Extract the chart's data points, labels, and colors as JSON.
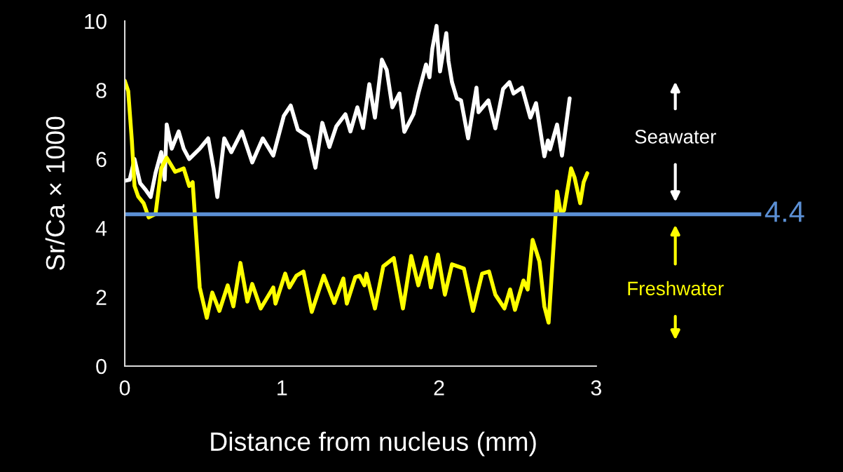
{
  "chart_data": {
    "type": "line",
    "xlabel": "Distance from nucleus (mm)",
    "ylabel": "Sr/Ca × 1000",
    "xlim": [
      0,
      4.05
    ],
    "ylim": [
      0,
      10
    ],
    "xticks": [
      0,
      1,
      2,
      3
    ],
    "yticks": [
      0,
      2,
      4,
      6,
      8,
      10
    ],
    "grid": false,
    "marker": "none",
    "line_style": "solid",
    "series": [
      {
        "color": "#ffffff",
        "x": [
          0.0,
          0.031,
          0.062,
          0.098,
          0.134,
          0.165,
          0.196,
          0.232,
          0.254,
          0.267,
          0.299,
          0.343,
          0.375,
          0.41,
          0.477,
          0.531,
          0.566,
          0.589,
          0.633,
          0.678,
          0.745,
          0.811,
          0.878,
          0.945,
          1.012,
          1.056,
          1.101,
          1.168,
          1.213,
          1.257,
          1.302,
          1.346,
          1.404,
          1.436,
          1.48,
          1.516,
          1.556,
          1.592,
          1.636,
          1.667,
          1.703,
          1.748,
          1.779,
          1.837,
          1.868,
          1.917,
          1.939,
          1.957,
          1.984,
          2.006,
          2.046,
          2.06,
          2.082,
          2.113,
          2.14,
          2.185,
          2.238,
          2.251,
          2.314,
          2.358,
          2.407,
          2.448,
          2.474,
          2.528,
          2.581,
          2.617,
          2.67,
          2.693,
          2.706,
          2.751,
          2.782,
          2.831
        ],
        "values": [
          5.37,
          5.4,
          6.0,
          5.3,
          5.1,
          4.9,
          5.6,
          6.2,
          5.4,
          7.0,
          6.3,
          6.8,
          6.3,
          6.0,
          6.3,
          6.6,
          5.7,
          4.9,
          6.6,
          6.2,
          6.8,
          5.9,
          6.6,
          6.1,
          7.25,
          7.55,
          6.85,
          6.65,
          5.75,
          7.05,
          6.35,
          6.95,
          7.3,
          6.8,
          7.5,
          6.9,
          8.17,
          7.2,
          8.88,
          8.58,
          7.5,
          7.9,
          6.79,
          7.3,
          7.9,
          8.74,
          8.37,
          9.19,
          9.86,
          8.54,
          9.65,
          8.84,
          8.23,
          7.76,
          7.7,
          6.6,
          8.07,
          7.36,
          7.7,
          6.89,
          8.03,
          8.23,
          7.9,
          8.07,
          7.2,
          7.62,
          6.08,
          6.54,
          6.28,
          7.0,
          6.1,
          7.76
        ]
      },
      {
        "color": "#ffff00",
        "x": [
          0.0,
          0.022,
          0.045,
          0.062,
          0.085,
          0.12,
          0.152,
          0.196,
          0.232,
          0.267,
          0.321,
          0.375,
          0.41,
          0.432,
          0.477,
          0.522,
          0.557,
          0.602,
          0.655,
          0.691,
          0.736,
          0.78,
          0.811,
          0.865,
          0.945,
          0.959,
          1.021,
          1.048,
          1.092,
          1.137,
          1.19,
          1.266,
          1.333,
          1.391,
          1.413,
          1.467,
          1.494,
          1.525,
          1.538,
          1.592,
          1.645,
          1.712,
          1.77,
          1.823,
          1.868,
          1.917,
          1.948,
          1.993,
          2.037,
          2.082,
          2.158,
          2.216,
          2.274,
          2.318,
          2.358,
          2.416,
          2.452,
          2.483,
          2.537,
          2.564,
          2.595,
          2.639,
          2.67,
          2.697,
          2.751,
          2.773,
          2.795,
          2.84,
          2.862,
          2.898,
          2.92,
          2.943
        ],
        "values": [
          8.27,
          7.97,
          6.54,
          5.22,
          4.92,
          4.72,
          4.31,
          4.41,
          5.73,
          6.04,
          5.63,
          5.73,
          5.22,
          5.33,
          2.28,
          1.4,
          2.13,
          1.6,
          2.34,
          1.73,
          2.99,
          1.87,
          2.38,
          1.67,
          2.28,
          1.81,
          2.68,
          2.28,
          2.62,
          2.74,
          1.57,
          2.62,
          1.83,
          2.54,
          1.81,
          2.58,
          2.62,
          2.34,
          2.68,
          1.67,
          2.89,
          3.13,
          1.67,
          3.19,
          2.34,
          3.15,
          2.28,
          3.23,
          2.07,
          2.95,
          2.83,
          1.6,
          2.68,
          2.74,
          2.07,
          1.67,
          2.22,
          1.63,
          2.48,
          2.22,
          3.66,
          3.03,
          1.73,
          1.26,
          5.06,
          4.47,
          4.51,
          5.73,
          5.47,
          4.72,
          5.33,
          5.59
        ]
      }
    ],
    "ref_lines": [
      {
        "axis": "y",
        "value": 4.4,
        "label": "4.4",
        "color": "#5b8fd4"
      }
    ],
    "annotations": [
      "Seawater",
      "Freshwater"
    ]
  }
}
